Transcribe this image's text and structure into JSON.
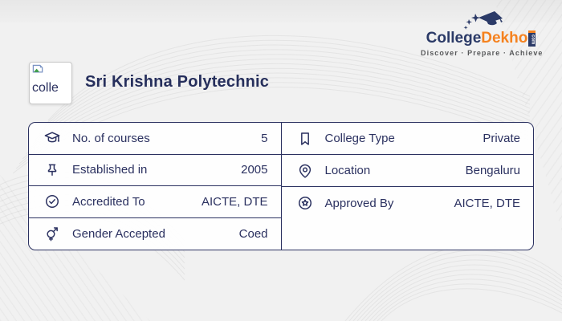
{
  "brand": {
    "logo_college": "College",
    "logo_dekho": "Dekho",
    "logo_com": "com",
    "tagline": "Discover · Prepare · Achieve",
    "color_navy": "#2b3a67",
    "color_orange": "#f5821f"
  },
  "header": {
    "title": "Sri Krishna Polytechnic",
    "thumbnail_alt_text": "colle"
  },
  "info_table": {
    "left_rows": [
      {
        "icon": "graduation-cap-icon",
        "label": "No. of courses",
        "value": "5"
      },
      {
        "icon": "pushpin-icon",
        "label": "Established in",
        "value": "2005"
      },
      {
        "icon": "check-circle-icon",
        "label": "Accredited To",
        "value": "AICTE, DTE"
      },
      {
        "icon": "gender-icon",
        "label": "Gender Accepted",
        "value": "Coed"
      }
    ],
    "right_rows": [
      {
        "icon": "bookmark-icon",
        "label": "College Type",
        "value": "Private"
      },
      {
        "icon": "location-pin-icon",
        "label": "Location",
        "value": "Bengaluru"
      },
      {
        "icon": "approval-badge-icon",
        "label": "Approved By",
        "value": "AICTE, DTE"
      }
    ],
    "border_color": "#2b3160",
    "text_color": "#2b3160"
  }
}
